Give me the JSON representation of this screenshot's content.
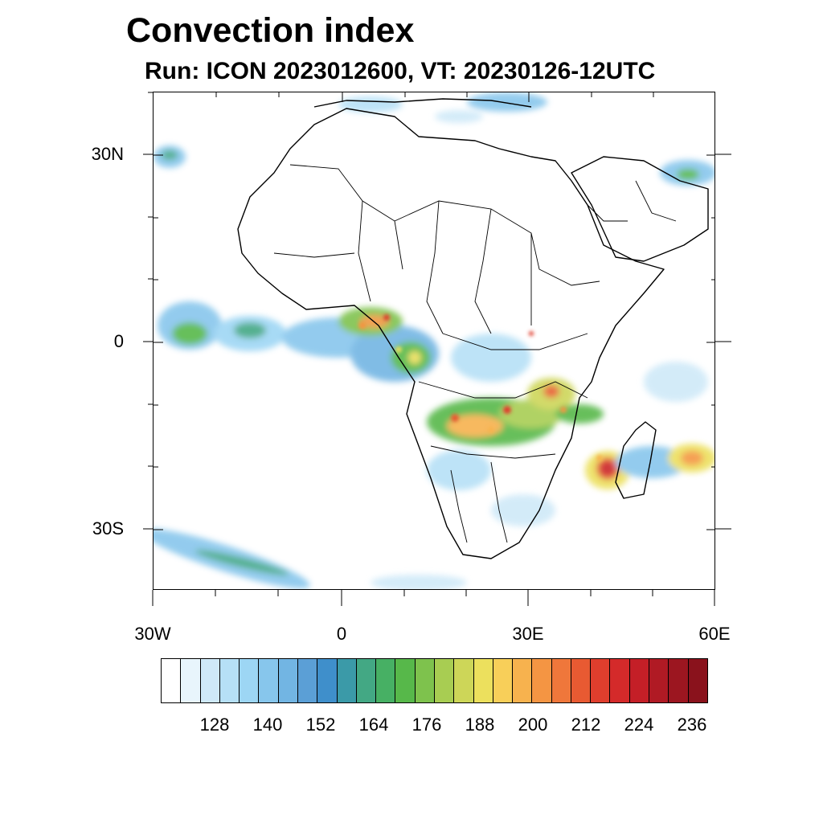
{
  "title": "Convection index",
  "subtitle": "Run: ICON 2023012600,  VT: 20230126-12UTC",
  "axes": {
    "lat_labels": [
      "30N",
      "0",
      "30S"
    ],
    "lon_labels": [
      "30W",
      "0",
      "30E",
      "60E"
    ]
  },
  "colorbar": {
    "colors": [
      "#ffffff",
      "#e8f5fc",
      "#cfe9f8",
      "#b6e0f6",
      "#9dd6f4",
      "#87c6ec",
      "#72b5e3",
      "#5b9fd6",
      "#3f8fcb",
      "#3b9aa8",
      "#43a884",
      "#47b064",
      "#57b84a",
      "#7ec24d",
      "#a8cd52",
      "#cdd658",
      "#ece05d",
      "#f8cf59",
      "#f7b24e",
      "#f49543",
      "#ef773b",
      "#e85a32",
      "#df3e2d",
      "#d42a2a",
      "#c41f27",
      "#b01a24",
      "#9c1620",
      "#8a121c"
    ],
    "labels": [
      "128",
      "140",
      "152",
      "164",
      "176",
      "188",
      "200",
      "212",
      "224",
      "236"
    ]
  },
  "palette": {
    "coast": "#000000",
    "background": "#ffffff"
  }
}
